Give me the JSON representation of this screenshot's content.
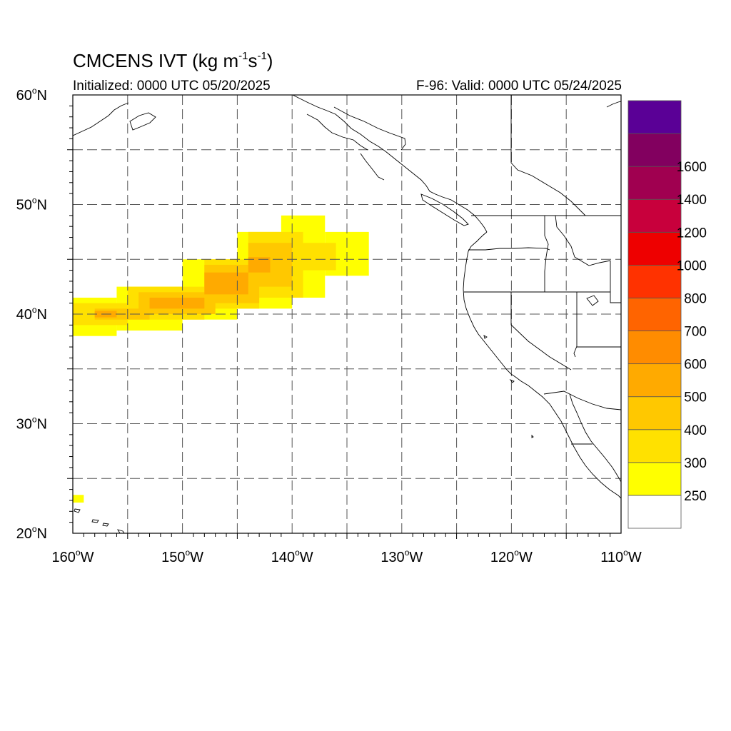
{
  "title": {
    "prefix": "CMCENS IVT (kg m",
    "exp1": "-1",
    "mid": "s",
    "exp2": "-1",
    "suffix": ")"
  },
  "initialized": "Initialized: 0000 UTC 05/20/2025",
  "valid": "F-96: Valid: 0000 UTC 05/24/2025",
  "map": {
    "lon_range": [
      -160,
      -110
    ],
    "lat_range": [
      20,
      60
    ],
    "grid": "dashed every 5 degrees",
    "lat_labels": [
      {
        "lat": 60,
        "deg": "60",
        "hemi": "N"
      },
      {
        "lat": 50,
        "deg": "50",
        "hemi": "N"
      },
      {
        "lat": 40,
        "deg": "40",
        "hemi": "N"
      },
      {
        "lat": 30,
        "deg": "30",
        "hemi": "N"
      },
      {
        "lat": 20,
        "deg": "20",
        "hemi": "N"
      }
    ],
    "lon_labels": [
      {
        "lon": -160,
        "deg": "160",
        "hemi": "W"
      },
      {
        "lon": -150,
        "deg": "150",
        "hemi": "W"
      },
      {
        "lon": -140,
        "deg": "140",
        "hemi": "W"
      },
      {
        "lon": -130,
        "deg": "130",
        "hemi": "W"
      },
      {
        "lon": -120,
        "deg": "120",
        "hemi": "W"
      },
      {
        "lon": -110,
        "deg": "110",
        "hemi": "W"
      }
    ]
  },
  "colorbar": {
    "boxes": [
      {
        "color": "#ffffff"
      },
      {
        "color": "#ffff00",
        "label": "250"
      },
      {
        "color": "#ffe100",
        "label": "300"
      },
      {
        "color": "#ffc800",
        "label": "400"
      },
      {
        "color": "#ffaa00",
        "label": "500"
      },
      {
        "color": "#ff8c00",
        "label": "600"
      },
      {
        "color": "#ff6400",
        "label": "700"
      },
      {
        "color": "#ff3200",
        "label": "800"
      },
      {
        "color": "#ee0000",
        "label": "1000"
      },
      {
        "color": "#c8003c",
        "label": "1200"
      },
      {
        "color": "#a00050",
        "label": "1400"
      },
      {
        "color": "#82005f",
        "label": "1600"
      },
      {
        "color": "#5a0096"
      }
    ]
  },
  "ivt_field": {
    "units": "kg m-1 s-1",
    "cells": [
      {
        "lon": [
          -160,
          -156
        ],
        "lat": [
          41.5,
          38
        ],
        "level": 1
      },
      {
        "lon": [
          -156,
          -150
        ],
        "lat": [
          42.5,
          38.5
        ],
        "level": 1
      },
      {
        "lon": [
          -150,
          -145
        ],
        "lat": [
          45,
          39.5
        ],
        "level": 1
      },
      {
        "lon": [
          -145,
          -140
        ],
        "lat": [
          47.5,
          40.5
        ],
        "level": 1
      },
      {
        "lon": [
          -141,
          -137
        ],
        "lat": [
          49,
          41.5
        ],
        "level": 1
      },
      {
        "lon": [
          -137,
          -133
        ],
        "lat": [
          47.5,
          43.5
        ],
        "level": 1
      },
      {
        "lon": [
          -160,
          -155
        ],
        "lat": [
          41,
          39
        ],
        "level": 2
      },
      {
        "lon": [
          -155,
          -148
        ],
        "lat": [
          42.5,
          39.5
        ],
        "level": 2
      },
      {
        "lon": [
          -148,
          -143
        ],
        "lat": [
          45,
          40.5
        ],
        "level": 2
      },
      {
        "lon": [
          -144,
          -139
        ],
        "lat": [
          47.5,
          41.5
        ],
        "level": 2
      },
      {
        "lon": [
          -139,
          -136
        ],
        "lat": [
          46.5,
          44
        ],
        "level": 2
      },
      {
        "lon": [
          -158,
          -153
        ],
        "lat": [
          40.5,
          39.5
        ],
        "level": 3
      },
      {
        "lon": [
          -154,
          -147
        ],
        "lat": [
          42,
          40
        ],
        "level": 3
      },
      {
        "lon": [
          -148,
          -143
        ],
        "lat": [
          44.5,
          41
        ],
        "level": 3
      },
      {
        "lon": [
          -144,
          -140
        ],
        "lat": [
          46.5,
          42.5
        ],
        "level": 3
      },
      {
        "lon": [
          -158,
          -156
        ],
        "lat": [
          40.3,
          39.7
        ],
        "level": 4
      },
      {
        "lon": [
          -153,
          -148
        ],
        "lat": [
          41.5,
          40.5
        ],
        "level": 4
      },
      {
        "lon": [
          -148,
          -144
        ],
        "lat": [
          43.8,
          41.8
        ],
        "level": 4
      },
      {
        "lon": [
          -144,
          -142
        ],
        "lat": [
          45.2,
          43.8
        ],
        "level": 4
      },
      {
        "lon": [
          -160,
          -159
        ],
        "lat": [
          23.5,
          22.8
        ],
        "level": 1
      }
    ]
  }
}
